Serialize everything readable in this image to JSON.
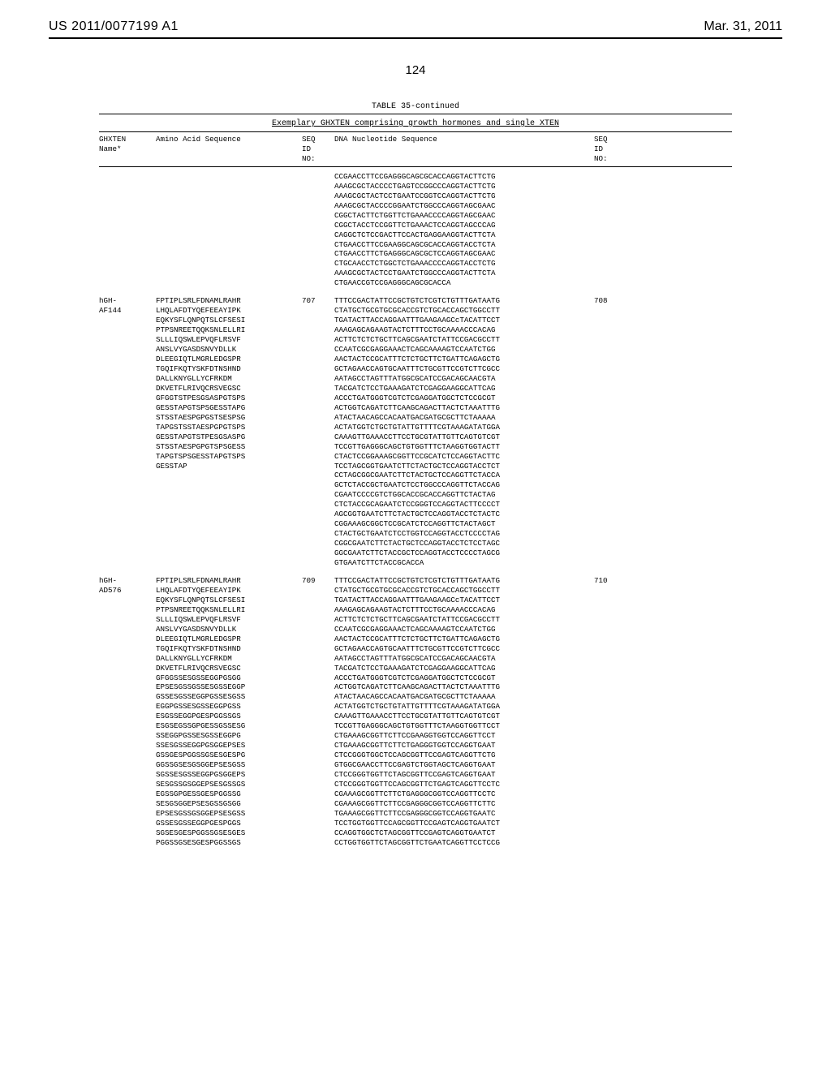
{
  "header": {
    "left": "US 2011/0077199 A1",
    "right": "Mar. 31, 2011"
  },
  "page_number": "124",
  "table": {
    "caption": "TABLE 35-continued",
    "subtitle": "Exemplary GHXTEN comprising growth hormones and single XTEN",
    "columns": {
      "ghxten_name": "GHXTEN\nName*",
      "aa_seq": "Amino Acid Sequence",
      "seq_id_1": "SEQ\nID\nNO:",
      "dna_seq": "DNA Nucleotide Sequence",
      "seq_id_2": "SEQ\nID\nNO:"
    },
    "rows": [
      {
        "name": "",
        "aa": "",
        "seq1": "",
        "dna": "CCGAACCTTCCGAGGGCAGCGCACCAGGTACTTCTG\nAAAGCGCTACCCCTGAGTCCGGCCCAGGTACTTCTG\nAAAGCGCTACTCCTGAATCCGGTCCAGGTACTTCTG\nAAAGCGCTACCCCGGAATCTGGCCCAGGTAGCGAAC\nCGGCTACTTCTGGTTCTGAAACCCCAGGTAGCGAAC\nCGGCTACCTCCGGTTCTGAAACTCCAGGTAGCCCAG\nCAGGCTCTCCGACTTCCACTGAGGAAGGTACTTCTA\nCTGAACCTTCCGAAGGCAGCGCACCAGGTACCTCTA\nCTGAACCTTCTGAGGGCAGCGCTCCAGGTAGCGAAC\nCTGCAACCTCTGGCTCTGAAACCCCAGGTACCTCTG\nAAAGCGCTACTCCTGAATCTGGCCCAGGTACTTCTA\nCTGAACCGTCCGAGGGCAGCGCACCA",
        "seq2": ""
      },
      {
        "name": "hGH-\nAF144",
        "aa": "FPTIPLSRLFDNAMLRAHR\nLHQLAFDTYQEFEEAYIPK\nEQKYSFLQNPQTSLCFSESI\nPTPSNREETQQKSNLELLRI\nSLLLIQSWLEPVQFLRSVF\nANSLVYGASDSNVYDLLK\nDLEEGIQTLMGRLEDGSPR\nTGQIFKQTYSKFDTNSHND\nDALLKNYGLLYCFRKDM\nDKVETFLRIVQCRSVEGSC\nGFGGTSTPESGSASPGTSPS\nGESSTAPGTSPSGESSTAPG\nSTSSTAESPGPGSTSESPSG\nTAPGSTSSTAESPGPGTSPS\nGESSTAPGTSTPESGSASPG\nSTSSTAESPGPGTSPSGESS\nTAPGTSPSGESSTAPGTSPS\nGESSTAP",
        "seq1": "707",
        "dna": "TTTCCGACTATTCCGCTGTCTCGTCTGTTTGATAATG\nCTATGCTGCGTGCGCACCGTCTGCACCAGCTGGCCTT\nTGATACTTACCAGGAATTTGAAGAAGCcTACATTCCT\nAAAGAGCAGAAGTACTCTTTCCTGCAAAACCCACAG\nACTTCTCTCTGCTTCAGCGAATCTATTCCGACGCCTT\nCCAATCGCGAGGAAACTCAGCAAAAGTCCAATCTGG\nAACTACTCCGCATTTCTCTGCTTCTGATTCAGAGCTG\nGCTAGAACCAGTGCAATTTCTGCGTTCCGTCTTCGCC\nAATAGCCTAGTTTATGGCGCATCCGACAGCAACGTA\nTACGATCTCCTGAAAGATCTCGAGGAAGGCATTCAG\nACCCTGATGGGTCGTCTCGAGGATGGCTCTCCGCGT\nACTGGTCAGATCTTCAAGCAGACTTACTCTAAATTTG\nATACTAACAGCCACAATGACGATGCGCTTCTAAAAA\nACTATGGTCTGCTGTATTGTTTTCGTAAAGATATGGA\nCAAAGTTGAAACCTTCCTGCGTATTGTTCAGTGTCGT\nTCCGTTGAGGGCAGCTGTGGTTTCTAAGGTGGTACTT\nCTACTCCGGAAAGCGGTTCCGCATCTCCAGGTACTTC\nTCCTAGCGGTGAATCTTCTACTGCTCCAGGTACCTCT\nCCTAGCGGCGAATCTTCTACTGCTCCAGGTTCTACCA\nGCTCTACCGCTGAATCTCCTGGCCCAGGTTCTACCAG\nCGAATCCCCGTCTGGCACCGCACCAGGTTCTACTAG\nCTCTACCGCAGAATCTCCGGGTCCAGGTACTTCCCCT\nAGCGGTGAATCTTCTACTGCTCCAGGTACCTCTACTC\nCGGAAAGCGGCTCCGCATCTCCAGGTTCTACTAGCT\nCTACTGCTGAATCTCCTGGTCCAGGTACCTCCCCTAG\nCGGCGAATCTTCTACTGCTCCAGGTACCTCTCCTAGC\nGGCGAATCTTCTACCGCTCCAGGTACCTCCCCTAGCG\nGTGAATCTTCTACCGCACCA",
        "seq2": "708"
      },
      {
        "name": "hGH-\nAD576",
        "aa": "FPTIPLSRLFDNAMLRAHR\nLHQLAFDTYQEFEEAYIPK\nEQKYSFLQNPQTSLCFSESI\nPTPSNREETQQKSNLELLRI\nSLLLIQSWLEPVQFLRSVF\nANSLVYGASDSNVYDLLK\nDLEEGIQTLMGRLEDGSPR\nTGQIFKQTYSKFDTNSHND\nDALLKNYGLLYCFRKDM\nDKVETFLRIVQCRSVEGSC\nGFGGSSESGSSEGGPGSGG\nEPSESGSSGSSESGSSEGGP\nGSSESGSSEGGPGSSESGSS\nEGGPGSSESGSSEGGPGSS\nESGSSEGGPGESPGGSSGS\nESGSEGSSGPGESSGSSESG\nSSEGGPGSSESGSSEGGPG\nSSESGSSEGGPGSGGEPSES\nGSSGESPGGSSGSESGESPG\nGGSSGSESGSGGEPSESGSS\nSGSSESGSSEGGPGSGGEPS\nSESGSSGSGGEPSESGSSGS\nEGSSGPGESSGESPGGSSG\nSESGSGGEPSESGSSGSGG\nEPSESGSSGSGGEPSESGSS\nGSSESGSSEGGPGESPGGS\nSGSESGESPGGSSGSESGES\nPGGSSGSESGESPGGSSGS",
        "seq1": "709",
        "dna": "TTTCCGACTATTCCGCTGTCTCGTCTGTTTGATAATG\nCTATGCTGCGTGCGCACCGTCTGCACCAGCTGGCCTT\nTGATACTTACCAGGAATTTGAAGAAGCcTACATTCCT\nAAAGAGCAGAAGTACTCTTTCCTGCAAAACCCACAG\nACTTCTCTCTGCTTCAGCGAATCTATTCCGACGCCTT\nCCAATCGCGAGGAAACTCAGCAAAAGTCCAATCTGG\nAACTACTCCGCATTTCTCTGCTTCTGATTCAGAGCTG\nGCTAGAACCAGTGCAATTTCTGCGTTCCGTCTTCGCC\nAATAGCCTAGTTTATGGCGCATCCGACAGCAACGTA\nTACGATCTCCTGAAAGATCTCGAGGAAGGCATTCAG\nACCCTGATGGGTCGTCTCGAGGATGGCTCTCCGCGT\nACTGGTCAGATCTTCAAGCAGACTTACTCTAAATTTG\nATACTAACAGCCACAATGACGATGCGCTTCTAAAAA\nACTATGGTCTGCTGTATTGTTTTCGTAAAGATATGGA\nCAAAGTTGAAACCTTCCTGCGTATTGTTCAGTGTCGT\nTCCGTTGAGGGCAGCTGTGGTTTCTAAGGTGGTTCCT\nCTGAAAGCGGTTCTTCCGAAGGTGGTCCAGGTTCCT\nCTGAAAGCGGTTCTTCTGAGGGTGGTCCAGGTGAAT\nCTCCGGGTGGCTCCAGCGGTTCCGAGTCAGGTTCTG\nGTGGCGAACCTTCCGAGTCTGGTAGCTCAGGTGAAT\nCTCCGGGTGGTTCTAGCGGTTCCGAGTCAGGTGAAT\nCTCCGGGTGGTTCCAGCGGTTCTGAGTCAGGTTCCTC\nCGAAAGCGGTTCTTCTGAGGGCGGTCCAGGTTCCTC\nCGAAAGCGGTTCTTCCGAGGGCGGTCCAGGTTCTTC\nTGAAAGCGGTTCTTCCGAGGGCGGTCCAGGTGAATC\nTCCTGGTGGTTCCAGCGGTTCCGAGTCAGGTGAATCT\nCCAGGTGGCTCTAGCGGTTCCGAGTCAGGTGAATCT\nCCTGGTGGTTCTAGCGGTTCTGAATCAGGTTCCTCCG",
        "seq2": "710"
      }
    ]
  }
}
